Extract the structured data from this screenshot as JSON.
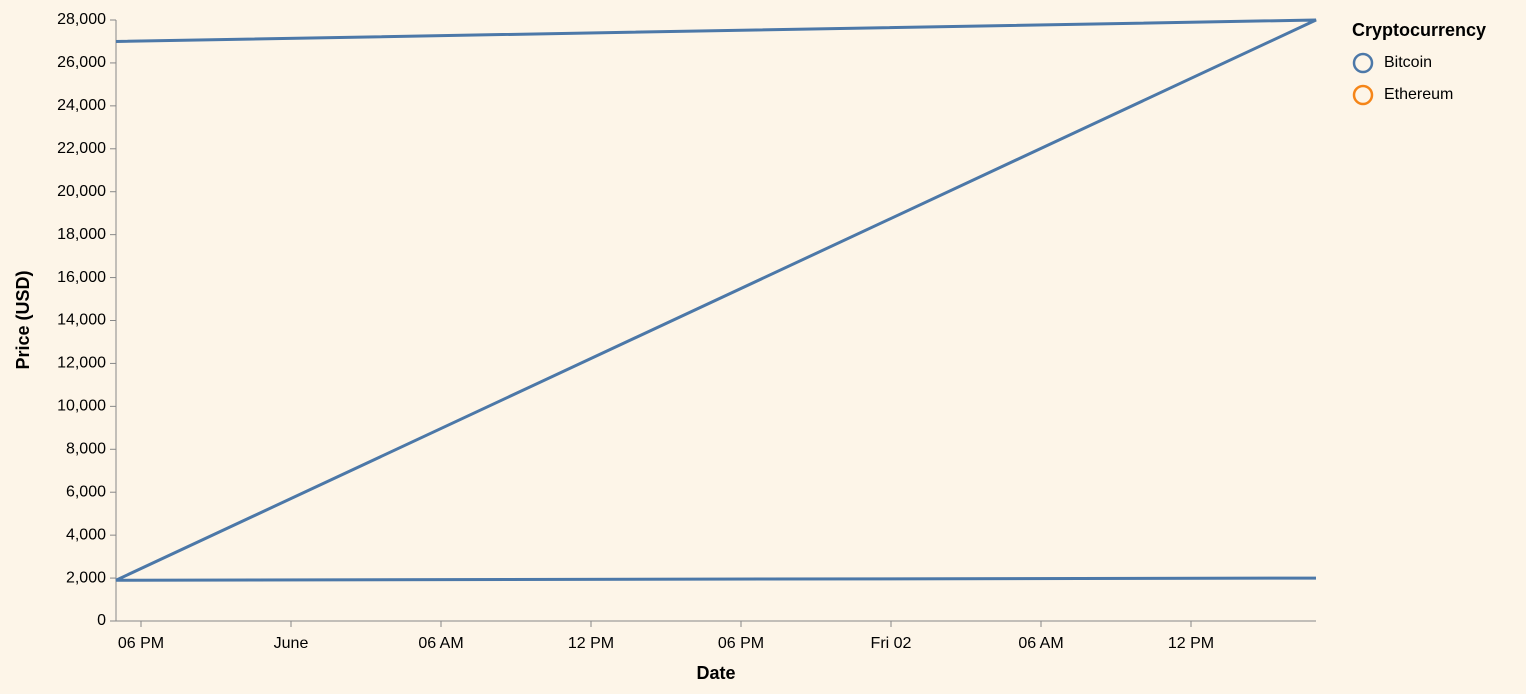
{
  "chart_data": {
    "type": "line",
    "x_title": "Date",
    "y_title": "Price (USD)",
    "x": [
      "05-31 17:00",
      "06-02 17:00",
      "05-31 17:00",
      "06-02 17:00"
    ],
    "series": [
      {
        "name": "Bitcoin",
        "color": "#4c78a8",
        "values": [
          27000,
          28000,
          1900,
          2000
        ]
      }
    ],
    "legend": {
      "title": "Cryptocurrency",
      "position": "right",
      "items": [
        {
          "name": "Bitcoin",
          "color": "#4c78a8"
        },
        {
          "name": "Ethereum",
          "color": "#f58518"
        }
      ]
    },
    "xlim": [
      "05-31 17:00",
      "06-02 17:00"
    ],
    "xticks": [
      {
        "value": "05-31 18:00",
        "label": "06 PM"
      },
      {
        "value": "06-01 00:00",
        "label": "June"
      },
      {
        "value": "06-01 06:00",
        "label": "06 AM"
      },
      {
        "value": "06-01 12:00",
        "label": "12 PM"
      },
      {
        "value": "06-01 18:00",
        "label": "06 PM"
      },
      {
        "value": "06-02 00:00",
        "label": "Fri 02"
      },
      {
        "value": "06-02 06:00",
        "label": "06 AM"
      },
      {
        "value": "06-02 12:00",
        "label": "12 PM"
      }
    ],
    "ylim": [
      0,
      28000
    ],
    "yticks": [
      0,
      {
        "value": 2000,
        "label": "2,000"
      },
      {
        "value": 4000,
        "label": "4,000"
      },
      {
        "value": 6000,
        "label": "6,000"
      },
      {
        "value": 8000,
        "label": "8,000"
      },
      {
        "value": 10000,
        "label": "10,000"
      },
      {
        "value": 12000,
        "label": "12,000"
      },
      {
        "value": 14000,
        "label": "14,000"
      },
      {
        "value": 16000,
        "label": "16,000"
      },
      {
        "value": 18000,
        "label": "18,000"
      },
      {
        "value": 20000,
        "label": "20,000"
      },
      {
        "value": 22000,
        "label": "22,000"
      },
      {
        "value": 24000,
        "label": "24,000"
      },
      {
        "value": 26000,
        "label": "26,000"
      },
      {
        "value": 28000,
        "label": "28,000"
      }
    ],
    "grid": false
  }
}
